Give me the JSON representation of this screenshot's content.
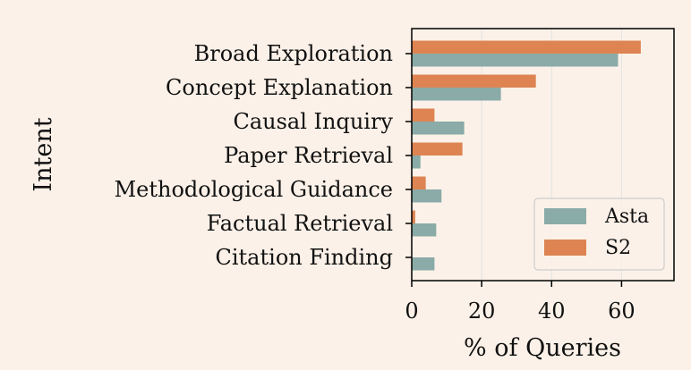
{
  "chart_data": {
    "type": "bar",
    "orientation": "horizontal",
    "categories": [
      "Broad Exploration",
      "Concept Explanation",
      "Causal Inquiry",
      "Paper Retrieval",
      "Methodological Guidance",
      "Factual Retrieval",
      "Citation Finding"
    ],
    "series": [
      {
        "name": "S2",
        "color": "#DD8452",
        "values": [
          65.5,
          35.5,
          6.5,
          14.5,
          4.0,
          1.0,
          0.0
        ]
      },
      {
        "name": "Asta",
        "color": "#8AABA7",
        "values": [
          59.0,
          25.5,
          15.0,
          2.5,
          8.5,
          7.0,
          6.5
        ]
      }
    ],
    "title": "",
    "xlabel": "% of Queries",
    "ylabel": "Intent",
    "xlim": [
      0,
      75
    ],
    "xticks": [
      "0",
      "20",
      "40",
      "60"
    ],
    "grid": "vertical",
    "legend": {
      "placement": "lower-right",
      "entries": [
        "Asta",
        "S2"
      ]
    }
  }
}
